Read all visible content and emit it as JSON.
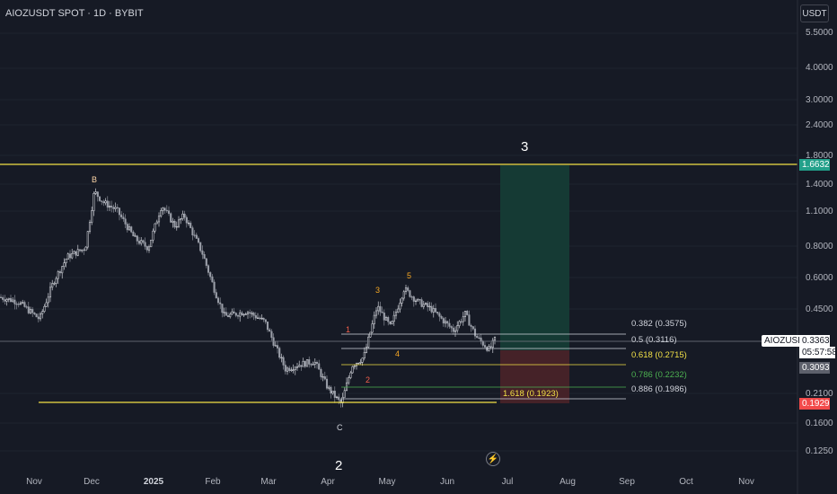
{
  "header": {
    "title": "AIOZUSDT SPOT · 1D · BYBIT"
  },
  "currency_button": "USDT",
  "y_axis": {
    "ticks": [
      "5.5000",
      "4.0000",
      "3.0000",
      "2.4000",
      "1.8000",
      "1.4000",
      "1.1000",
      "0.8000",
      "0.6000",
      "0.4500",
      "0.2100",
      "0.1600",
      "0.1250"
    ]
  },
  "x_axis": {
    "ticks": [
      "Nov",
      "Dec",
      "2025",
      "Feb",
      "Mar",
      "Apr",
      "May",
      "Jun",
      "Jul",
      "Aug",
      "Sep",
      "Oct",
      "Nov"
    ]
  },
  "price_badges": {
    "target": "1.6632",
    "symbol": "AIOZUSDT",
    "last_price": "0.3363",
    "countdown": "05:57:58",
    "stop_level": "0.3093",
    "stop_target": "0.1929"
  },
  "fib_levels": [
    "0.382 (0.3575)",
    "0.5 (0.3116)",
    "0.618 (0.2715)",
    "0.786 (0.2232)",
    "0.886 (0.1986)",
    "1.618 (0.1923)"
  ],
  "wave_labels": {
    "B": "B",
    "C": "C",
    "w1": "1",
    "w2": "2",
    "w3": "3",
    "w4": "4",
    "w5": "5",
    "big3": "3",
    "big2": "2"
  },
  "colors": {
    "up": "#c8ccd4",
    "down": "#c8ccd4",
    "yellow": "#f2e146",
    "green_zone": "#153a34",
    "red_zone": "#452228",
    "target_green": "#22a08a",
    "stop_red": "#f24a4a"
  },
  "chart_data": {
    "type": "candlestick",
    "scale": "log",
    "ylim": [
      0.11,
      6.0
    ],
    "approx_close_path": [
      [
        "Oct",
        0.5
      ],
      [
        "Nov",
        0.42
      ],
      [
        "Nov",
        0.75
      ],
      [
        "Dec",
        1.25
      ],
      [
        "Dec",
        1.05
      ],
      [
        "Jan",
        0.85
      ],
      [
        "Jan",
        1.15
      ],
      [
        "Feb",
        0.85
      ],
      [
        "Feb",
        0.45
      ],
      [
        "Mar",
        0.32
      ],
      [
        "Mar",
        0.27
      ],
      [
        "Apr",
        0.19
      ],
      [
        "Apr",
        0.3
      ],
      [
        "May",
        0.45
      ],
      [
        "May",
        0.52
      ],
      [
        "Jun",
        0.4
      ],
      [
        "Jun",
        0.33
      ]
    ],
    "horizontal_lines": [
      1.6632,
      0.1929
    ]
  }
}
